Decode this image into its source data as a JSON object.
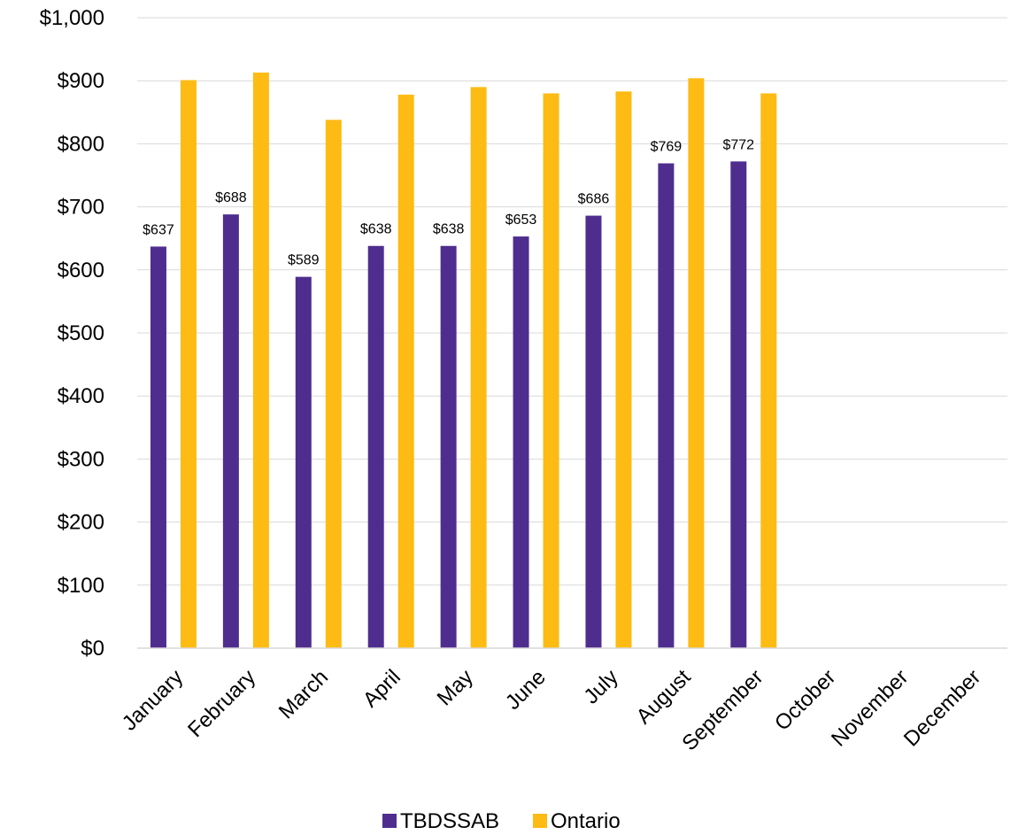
{
  "chart_data": {
    "type": "bar",
    "title": "",
    "xlabel": "",
    "ylabel": "",
    "categories": [
      "January",
      "February",
      "March",
      "April",
      "May",
      "June",
      "July",
      "August",
      "September",
      "October",
      "November",
      "December"
    ],
    "series": [
      {
        "name": "TBDSSAB",
        "color": "#4f2d8f",
        "values": [
          637,
          688,
          589,
          638,
          638,
          653,
          686,
          769,
          772,
          null,
          null,
          null
        ],
        "data_labels": [
          "$637",
          "$688",
          "$589",
          "$638",
          "$638",
          "$653",
          "$686",
          "$769",
          "$772",
          "",
          "",
          ""
        ]
      },
      {
        "name": "Ontario",
        "color": "#fdbb13",
        "values": [
          901,
          913,
          838,
          878,
          890,
          880,
          883,
          904,
          880,
          null,
          null,
          null
        ],
        "data_labels": [
          "",
          "",
          "",
          "",
          "",
          "",
          "",
          "",
          "",
          "",
          "",
          ""
        ]
      }
    ],
    "ylim": [
      0,
      1000
    ],
    "yticks": [
      0,
      100,
      200,
      300,
      400,
      500,
      600,
      700,
      800,
      900,
      1000
    ],
    "ytick_labels": [
      "$0",
      "$100",
      "$200",
      "$300",
      "$400",
      "$500",
      "$600",
      "$700",
      "$800",
      "$900",
      "$1,000"
    ],
    "grid": "horizontal",
    "legend": "bottom-center"
  }
}
